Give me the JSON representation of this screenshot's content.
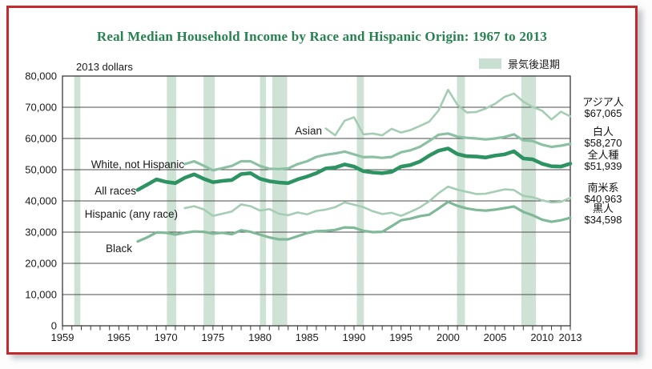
{
  "chart_data": {
    "type": "line",
    "title": "Real Median Household Income by Race and Hispanic Origin: 1967 to 2013",
    "units_label": "2013 dollars",
    "legend_label": "景気後退期",
    "x_range": [
      1959,
      2013
    ],
    "y_range": [
      0,
      80000
    ],
    "y_tick_step": 10000,
    "y_tick_labels": [
      "0",
      "10,000",
      "20,000",
      "30,000",
      "40,000",
      "50,000",
      "60,000",
      "70,000",
      "80,000"
    ],
    "x_tick_label_years": [
      1959,
      1965,
      1970,
      1975,
      1980,
      1985,
      1990,
      1995,
      2000,
      2005,
      2010,
      2013
    ],
    "grid": true,
    "legend_position": "top-right",
    "recessions": [
      [
        1960.25,
        1960.9
      ],
      [
        1970.1,
        1971.1
      ],
      [
        1974.0,
        1975.2
      ],
      [
        1980.0,
        1980.65
      ],
      [
        1981.3,
        1982.9
      ],
      [
        1990.3,
        1991.05
      ],
      [
        2000.95,
        2001.8
      ],
      [
        2007.8,
        2009.35
      ]
    ],
    "colors": {
      "recession_band": "#cfe2d6",
      "gridline": "#4c4c4c",
      "axis": "#3a3a3a",
      "text": "#1a1a1a",
      "title": "#26824e",
      "frame_border": "#c3292f"
    },
    "series": [
      {
        "id": "asian",
        "name": "Asian",
        "jp_name": "アジア人",
        "end_label": "$67,065",
        "end_value": 67065,
        "color": "#a4cdb4",
        "width": 2.6,
        "start_year": 1987,
        "values": [
          63200,
          61000,
          65700,
          66800,
          61300,
          61600,
          61000,
          63100,
          61900,
          62700,
          64000,
          65400,
          69000,
          75600,
          70800,
          68300,
          68500,
          69600,
          71100,
          73300,
          74400,
          71800,
          70100,
          68900,
          66100,
          68600,
          67065
        ]
      },
      {
        "id": "white_not_hispanic",
        "name": "White, not Hispanic",
        "jp_name": "白人",
        "end_label": "$58,270",
        "end_value": 58270,
        "color": "#8cc0a3",
        "width": 3.2,
        "start_year": 1972,
        "values": [
          51800,
          52700,
          51300,
          49800,
          50500,
          51200,
          52700,
          52700,
          51200,
          50300,
          50200,
          50400,
          51800,
          52700,
          54100,
          54800,
          55200,
          55800,
          54900,
          54000,
          54100,
          53800,
          54100,
          55600,
          56200,
          57300,
          59200,
          61200,
          61600,
          60600,
          60200,
          60000,
          59700,
          60000,
          60500,
          61300,
          59400,
          59200,
          58000,
          57300,
          57700,
          58270
        ]
      },
      {
        "id": "all_races",
        "name": "All races",
        "jp_name": "全人種",
        "end_label": "$51,939",
        "end_value": 51939,
        "color": "#2e9362",
        "width": 4.6,
        "start_year": 1967,
        "values": [
          43500,
          45200,
          46900,
          46100,
          45700,
          47400,
          48500,
          47100,
          46000,
          46400,
          46700,
          48600,
          48900,
          47100,
          46300,
          45900,
          45700,
          46900,
          47800,
          48900,
          50400,
          50700,
          51700,
          51000,
          49500,
          49100,
          48900,
          49300,
          51000,
          51500,
          52600,
          54500,
          56100,
          56800,
          55000,
          54300,
          54200,
          53900,
          54500,
          54900,
          55900,
          53600,
          53300,
          51900,
          51100,
          51000,
          51939
        ]
      },
      {
        "id": "hispanic",
        "name": "Hispanic (any race)",
        "jp_name": "南米系",
        "end_label": "$40,963",
        "end_value": 40963,
        "color": "#a4cdb4",
        "width": 2.6,
        "start_year": 1972,
        "values": [
          37700,
          38300,
          37300,
          35200,
          35900,
          36600,
          38900,
          38300,
          36900,
          37400,
          35900,
          35400,
          36300,
          35700,
          36800,
          37200,
          38000,
          39500,
          38800,
          38000,
          36700,
          35800,
          36200,
          35200,
          36500,
          37900,
          39900,
          42500,
          44600,
          43600,
          42900,
          42200,
          42300,
          43000,
          43700,
          43500,
          41600,
          41200,
          40200,
          39500,
          39700,
          40963
        ]
      },
      {
        "id": "black",
        "name": "Black",
        "jp_name": "黒人",
        "end_label": "$34,598",
        "end_value": 34598,
        "color": "#7fb998",
        "width": 3.2,
        "start_year": 1967,
        "values": [
          27000,
          28300,
          29900,
          29800,
          29200,
          29800,
          30200,
          30100,
          29500,
          29800,
          29300,
          30600,
          30100,
          29200,
          28300,
          27700,
          27700,
          28700,
          29700,
          30300,
          30400,
          30700,
          31500,
          31400,
          30400,
          30000,
          30100,
          31900,
          33800,
          34300,
          35100,
          35600,
          37600,
          39700,
          38400,
          37600,
          37100,
          36900,
          37200,
          37700,
          38200,
          36500,
          35400,
          34000,
          33300,
          33800,
          34598
        ]
      }
    ]
  }
}
